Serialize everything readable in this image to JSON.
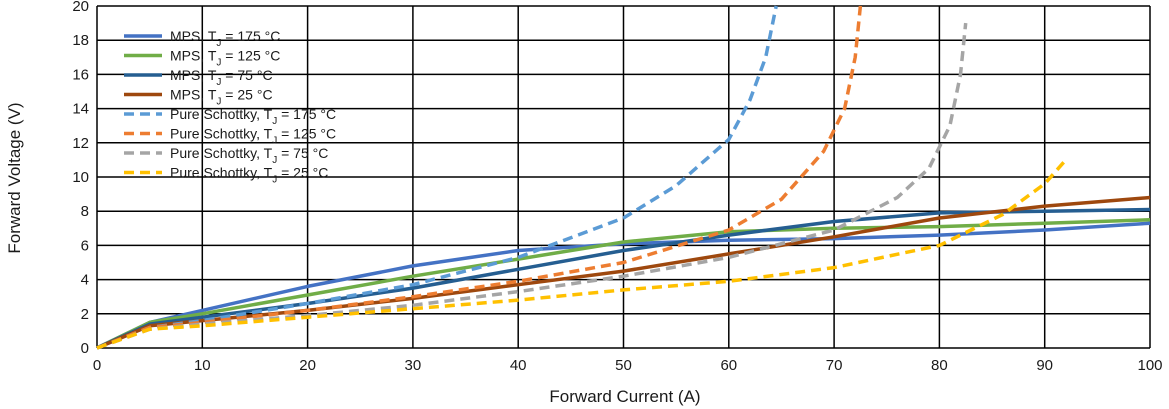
{
  "chart_data": {
    "type": "line",
    "title": "",
    "xlabel": "Forward Current (A)",
    "ylabel": "Forward Voltage (V)",
    "xlim": [
      0,
      100
    ],
    "ylim": [
      0,
      20
    ],
    "xticks": [
      0,
      10,
      20,
      30,
      40,
      50,
      60,
      70,
      80,
      90,
      100
    ],
    "yticks": [
      0,
      2,
      4,
      6,
      8,
      10,
      12,
      14,
      16,
      18,
      20
    ],
    "grid": true,
    "legend_position": "top-left",
    "series": [
      {
        "name": "MPS, T",
        "sub": "J",
        "suffix": " = 175 °C",
        "color": "#4472c4",
        "dash": false,
        "x": [
          0,
          5,
          10,
          20,
          30,
          40,
          50,
          60,
          70,
          80,
          90,
          100
        ],
        "y": [
          0,
          1.5,
          2.2,
          3.6,
          4.8,
          5.7,
          6.1,
          6.3,
          6.4,
          6.6,
          6.9,
          7.3
        ]
      },
      {
        "name": "MPS, T",
        "sub": "J",
        "suffix": " = 125 °C",
        "color": "#70ad47",
        "dash": false,
        "x": [
          0,
          5,
          10,
          20,
          30,
          40,
          50,
          60,
          70,
          80,
          90,
          100
        ],
        "y": [
          0,
          1.5,
          2.0,
          3.1,
          4.2,
          5.2,
          6.2,
          6.8,
          7.0,
          7.1,
          7.3,
          7.5
        ]
      },
      {
        "name": "MPS, T",
        "sub": "J",
        "suffix": " = 75 °C",
        "color": "#255e91",
        "dash": false,
        "x": [
          0,
          5,
          10,
          20,
          30,
          40,
          50,
          60,
          70,
          80,
          90,
          100
        ],
        "y": [
          0,
          1.4,
          1.8,
          2.6,
          3.5,
          4.6,
          5.7,
          6.6,
          7.4,
          7.9,
          8.0,
          8.1
        ]
      },
      {
        "name": "MPS, T",
        "sub": "J",
        "suffix": " = 25 °C",
        "color": "#9e480e",
        "dash": false,
        "x": [
          0,
          5,
          10,
          20,
          30,
          40,
          50,
          60,
          70,
          80,
          90,
          100
        ],
        "y": [
          0,
          1.3,
          1.6,
          2.2,
          2.9,
          3.7,
          4.5,
          5.5,
          6.5,
          7.6,
          8.3,
          8.8
        ]
      },
      {
        "name": "Pure Schottky, T",
        "sub": "J",
        "suffix": " = 175 °C",
        "color": "#5b9bd5",
        "dash": true,
        "x": [
          0,
          5,
          10,
          20,
          30,
          40,
          50,
          55,
          60,
          62,
          63.5,
          64.5
        ],
        "y": [
          0,
          1.2,
          1.6,
          2.6,
          3.7,
          5.3,
          7.6,
          9.5,
          12.2,
          14.5,
          17,
          20
        ]
      },
      {
        "name": "Pure Schottky, T",
        "sub": "J",
        "suffix": " = 125 °C",
        "color": "#ed7d31",
        "dash": true,
        "x": [
          0,
          5,
          10,
          20,
          30,
          40,
          50,
          60,
          65,
          69,
          71,
          72,
          72.5
        ],
        "y": [
          0,
          1.2,
          1.5,
          2.2,
          3.0,
          3.9,
          5.0,
          6.9,
          8.7,
          11.5,
          14,
          17,
          20
        ]
      },
      {
        "name": "Pure Schottky, T",
        "sub": "J",
        "suffix": " = 75 °C",
        "color": "#a5a5a5",
        "dash": true,
        "x": [
          0,
          5,
          10,
          20,
          30,
          40,
          50,
          60,
          70,
          76,
          79,
          81,
          82,
          82.5
        ],
        "y": [
          0,
          1.1,
          1.4,
          1.9,
          2.5,
          3.3,
          4.2,
          5.3,
          6.9,
          8.8,
          10.5,
          13,
          16,
          19
        ]
      },
      {
        "name": "Pure Schottky, T",
        "sub": "J",
        "suffix": " = 25 °C",
        "color": "#ffc000",
        "dash": true,
        "x": [
          0,
          5,
          10,
          20,
          30,
          40,
          50,
          60,
          70,
          80,
          86,
          90,
          92
        ],
        "y": [
          0,
          1.1,
          1.3,
          1.8,
          2.3,
          2.8,
          3.4,
          3.9,
          4.7,
          6.0,
          7.8,
          9.6,
          11
        ]
      }
    ]
  }
}
